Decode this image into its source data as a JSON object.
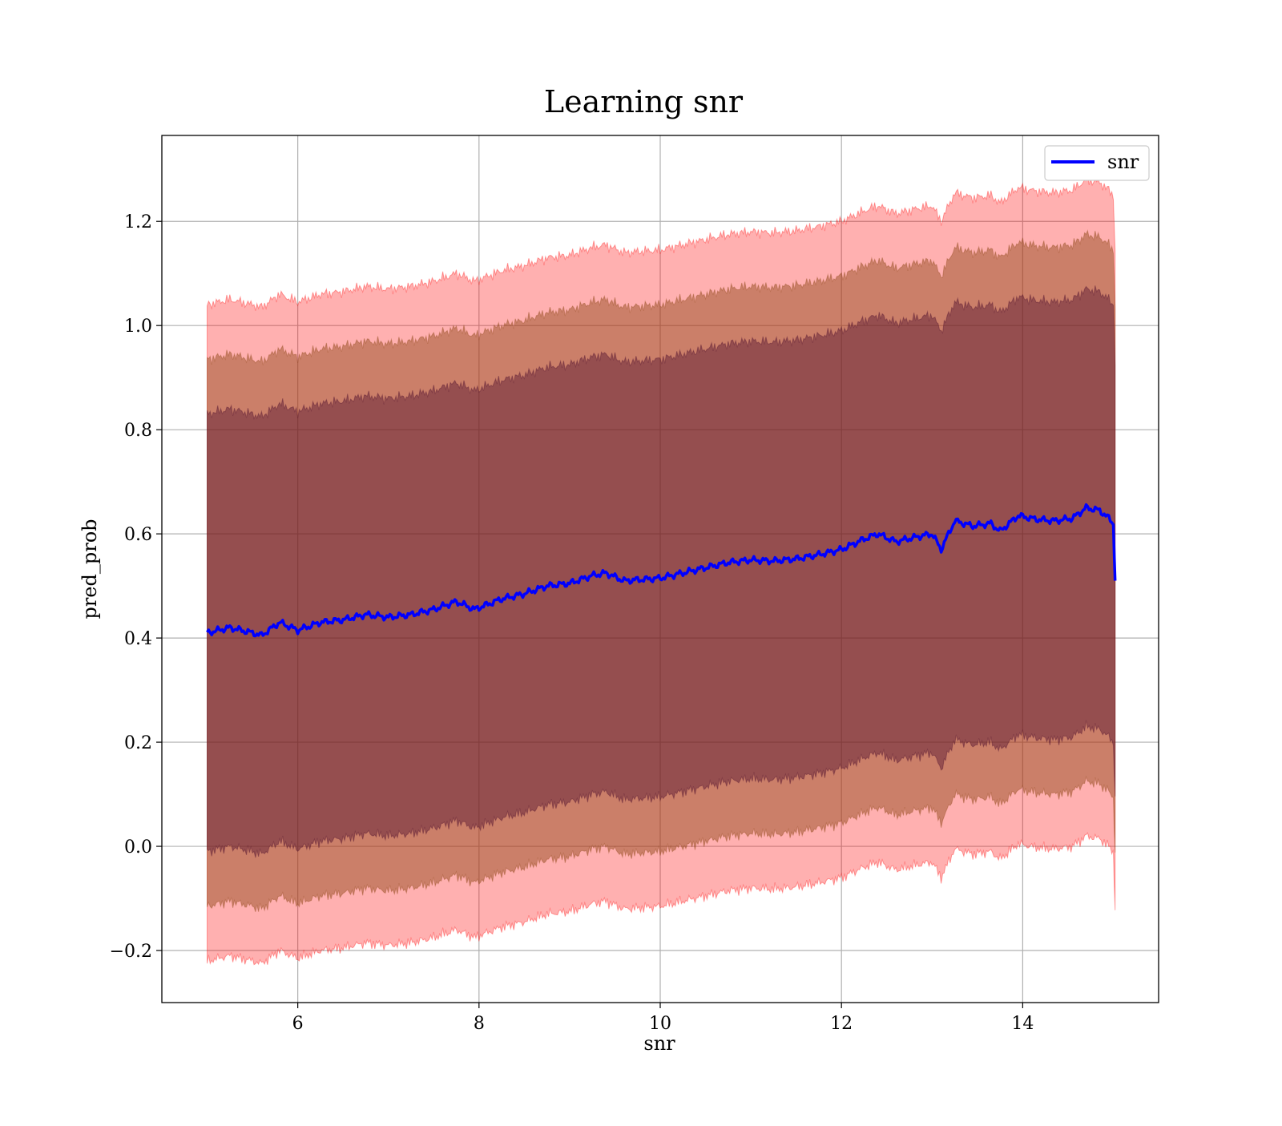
{
  "chart_data": {
    "type": "line",
    "title": "Learning snr",
    "xlabel": "snr",
    "ylabel": "pred_prob",
    "xlim": [
      4.5,
      15.5
    ],
    "ylim": [
      -0.3,
      1.365
    ],
    "xticks": [
      6,
      8,
      10,
      12,
      14
    ],
    "yticks": [
      -0.2,
      0.0,
      0.2,
      0.4,
      0.6,
      0.8,
      1.0,
      1.2
    ],
    "ytick_labels": [
      "−0.2",
      "0.0",
      "0.2",
      "0.4",
      "0.6",
      "0.8",
      "1.0",
      "1.2"
    ],
    "grid": true,
    "legend": {
      "position": "top-right",
      "entries": [
        "snr"
      ]
    },
    "colors": {
      "line": "#0000ff",
      "band_outer": "#ff0000",
      "band_middle": "#8b4513",
      "band_inner": "#4b0b2b",
      "grid": "#b0b0b0"
    },
    "series": [
      {
        "name": "snr",
        "x": [
          5.0,
          5.25,
          5.5,
          5.6,
          5.8,
          6.0,
          6.25,
          6.5,
          6.75,
          7.0,
          7.25,
          7.5,
          7.75,
          7.95,
          8.25,
          8.5,
          8.75,
          9.0,
          9.25,
          9.4,
          9.6,
          10.0,
          10.25,
          10.5,
          10.75,
          11.0,
          11.25,
          11.5,
          11.75,
          12.0,
          12.25,
          12.4,
          12.6,
          12.85,
          13.0,
          13.1,
          13.25,
          13.45,
          13.65,
          13.75,
          13.95,
          14.15,
          14.35,
          14.55,
          14.7,
          14.85,
          14.95,
          15.0,
          15.02
        ],
        "y": [
          0.41,
          0.42,
          0.41,
          0.405,
          0.43,
          0.415,
          0.43,
          0.435,
          0.445,
          0.44,
          0.445,
          0.455,
          0.47,
          0.455,
          0.475,
          0.485,
          0.5,
          0.505,
          0.52,
          0.525,
          0.51,
          0.515,
          0.525,
          0.535,
          0.545,
          0.55,
          0.548,
          0.552,
          0.56,
          0.57,
          0.59,
          0.6,
          0.585,
          0.595,
          0.6,
          0.57,
          0.625,
          0.615,
          0.62,
          0.605,
          0.635,
          0.628,
          0.625,
          0.63,
          0.65,
          0.645,
          0.63,
          0.62,
          0.51
        ]
      }
    ],
    "bands": [
      {
        "offset": 0.63,
        "color": "#ff0000",
        "opacity": 0.31
      },
      {
        "offset": 0.525,
        "color": "#8b4513",
        "opacity": 0.45
      },
      {
        "offset": 0.42,
        "color": "#4b0b2b",
        "opacity": 0.42
      }
    ]
  }
}
